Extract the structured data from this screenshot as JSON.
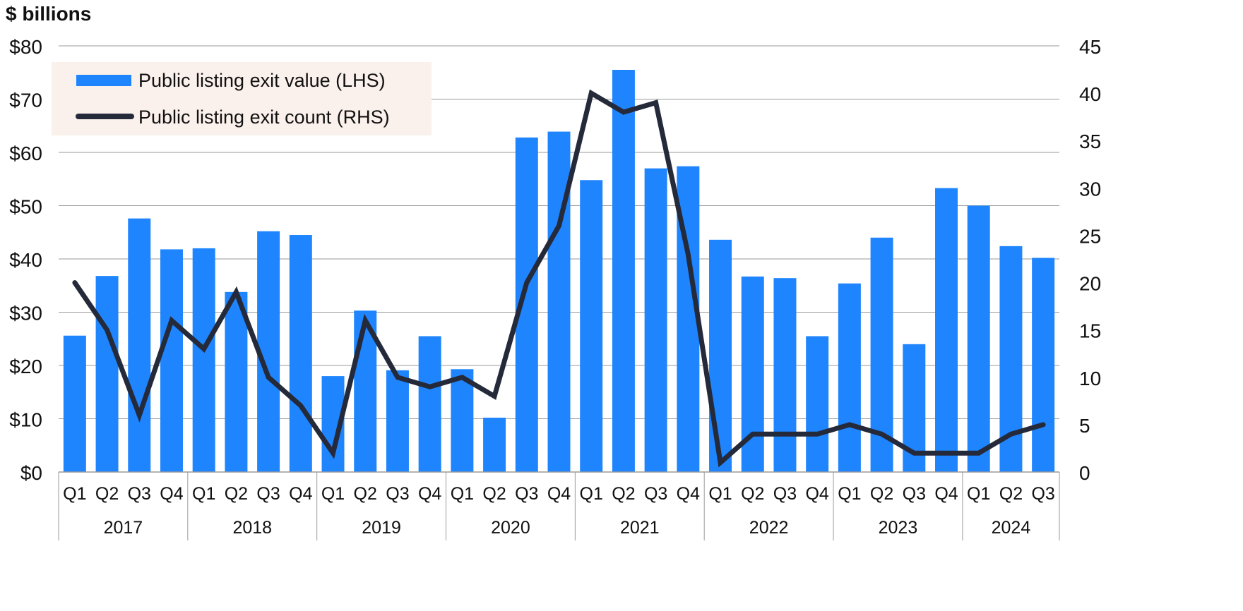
{
  "colors": {
    "bar": "#1f85ff",
    "line": "#252a3a",
    "grid": "#9a9a9a",
    "legend_bg": "#fbf1ec",
    "text": "#111111"
  },
  "chart_data": {
    "type": "bar",
    "unit_label": "$ billions",
    "categories": [
      "2017 Q1",
      "2017 Q2",
      "2017 Q3",
      "2017 Q4",
      "2018 Q1",
      "2018 Q2",
      "2018 Q3",
      "2018 Q4",
      "2019 Q1",
      "2019 Q2",
      "2019 Q3",
      "2019 Q4",
      "2020 Q1",
      "2020 Q2",
      "2020 Q3",
      "2020 Q4",
      "2021 Q1",
      "2021 Q2",
      "2021 Q3",
      "2021 Q4",
      "2022 Q1",
      "2022 Q2",
      "2022 Q3",
      "2022 Q4",
      "2023 Q1",
      "2023 Q2",
      "2023 Q3",
      "2023 Q4",
      "2024 Q1",
      "2024 Q2",
      "2024 Q3"
    ],
    "quarter_labels": [
      "Q1",
      "Q2",
      "Q3",
      "Q4",
      "Q1",
      "Q2",
      "Q3",
      "Q4",
      "Q1",
      "Q2",
      "Q3",
      "Q4",
      "Q1",
      "Q2",
      "Q3",
      "Q4",
      "Q1",
      "Q2",
      "Q3",
      "Q4",
      "Q1",
      "Q2",
      "Q3",
      "Q4",
      "Q1",
      "Q2",
      "Q3",
      "Q4",
      "Q1",
      "Q2",
      "Q3"
    ],
    "years": [
      "2017",
      "2018",
      "2019",
      "2020",
      "2021",
      "2022",
      "2023",
      "2024"
    ],
    "series": [
      {
        "name": "Public listing exit value (LHS)",
        "type": "bar",
        "axis": "left",
        "values": [
          25.6,
          36.8,
          47.6,
          41.8,
          42.0,
          33.8,
          45.2,
          44.5,
          18.0,
          30.3,
          19.1,
          25.5,
          19.3,
          10.2,
          62.8,
          63.9,
          54.8,
          75.5,
          57.0,
          57.4,
          43.6,
          36.7,
          36.4,
          25.5,
          35.4,
          44.0,
          24.0,
          53.3,
          50.0,
          42.4,
          40.2
        ]
      },
      {
        "name": "Public listing exit count (RHS)",
        "type": "line",
        "axis": "right",
        "values": [
          20,
          15,
          6,
          16,
          13,
          19,
          10,
          7,
          2,
          16,
          10,
          9,
          10,
          8,
          20,
          26,
          40,
          38,
          39,
          23,
          1,
          4,
          4,
          4,
          5,
          4,
          2,
          2,
          2,
          4,
          5
        ]
      }
    ],
    "left_axis": {
      "ylim": [
        0,
        80
      ],
      "ticks": [
        "$0",
        "$10",
        "$20",
        "$30",
        "$40",
        "$50",
        "$60",
        "$70",
        "$80"
      ]
    },
    "right_axis": {
      "ylim": [
        0,
        45
      ],
      "ticks": [
        "0",
        "5",
        "10",
        "15",
        "20",
        "25",
        "30",
        "35",
        "40",
        "45"
      ]
    },
    "grid": true,
    "legend_position": "top-left"
  }
}
